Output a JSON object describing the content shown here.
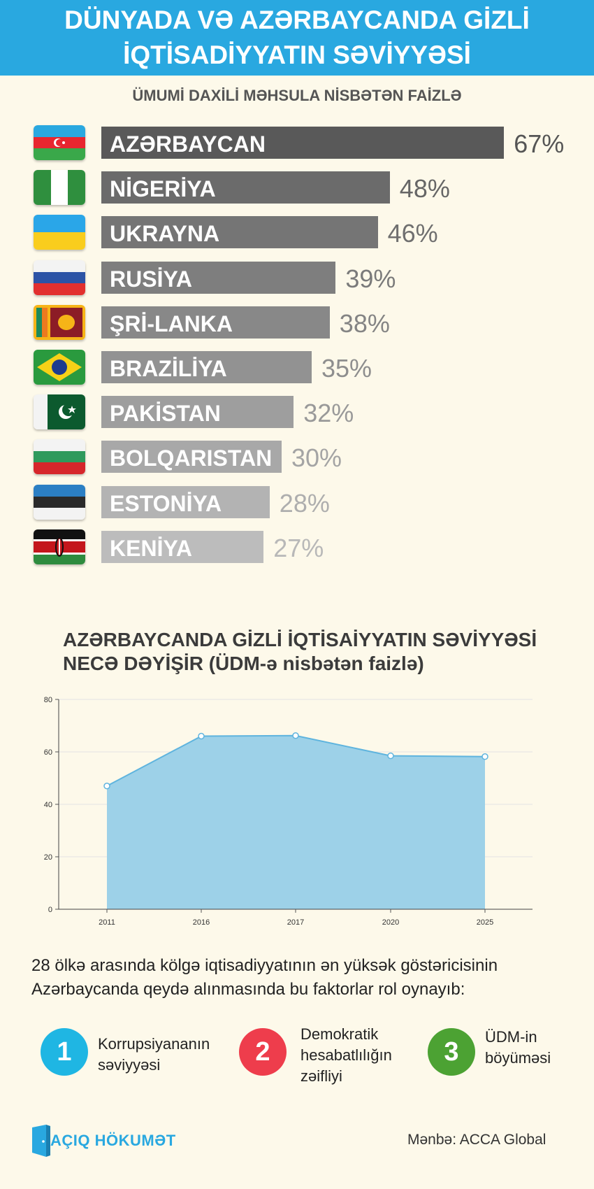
{
  "header": {
    "line1": "DÜNYADA VƏ AZƏRBAYCANDA GİZLİ",
    "line2": "İQTİSADİYYATIN SƏVİYYƏSİ"
  },
  "section1": {
    "subtitle": "ÜMUMİ DAXİLİ MƏHSULA NİSBƏTƏN FAİZLƏ"
  },
  "section2": {
    "title_line1": "AZƏRBAYCANDA GİZLİ İQTİSAİYYATIN SƏVİYYƏSİ",
    "title_line2": "NECƏ DƏYİŞİR (ÜDM-ə nisbətən faizlə)"
  },
  "chart_data": [
    {
      "type": "bar",
      "orientation": "horizontal",
      "categories": [
        "AZƏRBAYCAN",
        "NİGERİYA",
        "UKRAYNA",
        "RUSİYA",
        "ŞRİ-LANKA",
        "BRAZİLİYA",
        "PAKİSTAN",
        "BOLQARISTAN",
        "ESTONİYA",
        "KENİYA"
      ],
      "values": [
        67,
        48,
        46,
        39,
        38,
        35,
        32,
        30,
        28,
        27
      ],
      "value_labels": [
        "67%",
        "48%",
        "46%",
        "39%",
        "38%",
        "35%",
        "32%",
        "30%",
        "28%",
        "27%"
      ],
      "bar_colors": [
        "#595959",
        "#6b6b6b",
        "#757575",
        "#7e7e7e",
        "#888888",
        "#929292",
        "#9e9e9e",
        "#a8a8a8",
        "#b3b3b3",
        "#bcbcbc"
      ],
      "value_colors": [
        "#555555",
        "#666666",
        "#6f6f6f",
        "#7a7a7a",
        "#848484",
        "#8e8e8e",
        "#999999",
        "#a4a4a4",
        "#aeaeae",
        "#b8b8b8"
      ],
      "flags": [
        "azerbaijan-flag",
        "nigeria-flag",
        "ukraine-flag",
        "russia-flag",
        "sri-lanka-flag",
        "brazil-flag",
        "pakistan-flag",
        "bulgaria-flag",
        "estonia-flag",
        "kenya-flag"
      ]
    },
    {
      "type": "area",
      "categories": [
        "2011",
        "2016",
        "2017",
        "2020",
        "2025"
      ],
      "values": [
        47,
        66,
        66.2,
        58.5,
        58.2
      ],
      "ylim": [
        0,
        80
      ],
      "yticks": [
        "0",
        "20",
        "40",
        "60",
        "80"
      ],
      "grid": true,
      "fill_color": "#9dd1e8",
      "line_color": "#5fb4de"
    }
  ],
  "factors": {
    "intro_line1": "28 ölkə arasında kölgə iqtisadiyyatının ən yüksək göstəricisinin",
    "intro_line2": "Azərbaycanda qeydə alınmasında bu faktorlar rol oynayıb:",
    "items": [
      {
        "number": "1",
        "line1": "Korrupsiyananın",
        "line2": "səviyyəsi",
        "line3": "",
        "color": "#1fb6e3"
      },
      {
        "number": "2",
        "line1": "Demokratik",
        "line2": "hesabatlılığın",
        "line3": "zəifliyi",
        "color": "#ee3d4c"
      },
      {
        "number": "3",
        "line1": "ÜDM-in",
        "line2": "böyüməsi",
        "line3": "",
        "color": "#4ca233"
      }
    ]
  },
  "footer": {
    "logo_text": "AÇIQ HÖKUMƏT",
    "source": "Mənbə: ACCA Global"
  }
}
